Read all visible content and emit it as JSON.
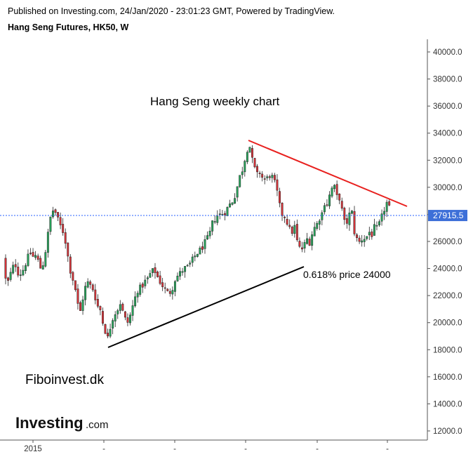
{
  "header": {
    "published": "Published on Investing.com, 24/Jan/2020 - 23:01:23 GMT, Powered by TradingView.",
    "instrument": "Hang Seng Futures, HK50, W"
  },
  "annotations": {
    "title": "Hang Seng weekly chart",
    "fib_note": "0.618% price 24000",
    "brand": "Fiboinvest.dk"
  },
  "logo": {
    "main": "Investing",
    "suffix": ".com"
  },
  "colors": {
    "up": "#26a65b",
    "down": "#d9343a",
    "resistance": "#e8201e",
    "support": "#000000",
    "price_line": "#2962ff",
    "price_tag": "#3d6fd8"
  },
  "chart_data": {
    "type": "candlestick",
    "timeframe": "W",
    "ylim": [
      11000,
      41500
    ],
    "y_ticks": [
      "40000.0",
      "38000.0",
      "36000.0",
      "34000.0",
      "32000.0",
      "30000.0",
      "28000.0",
      "26000.0",
      "24000.0",
      "22000.0",
      "20000.0",
      "18000.0",
      "16000.0",
      "14000.0",
      "12000.0"
    ],
    "x_ticks": [
      "2015",
      "-",
      "-",
      "-",
      "-",
      "-"
    ],
    "last_price": "27915.5",
    "last_price_value": 27915.5,
    "path": [
      [
        0,
        24800
      ],
      [
        3,
        25300
      ],
      [
        8,
        23200
      ],
      [
        12,
        23000
      ],
      [
        17,
        24000
      ],
      [
        22,
        24300
      ],
      [
        27,
        23500
      ],
      [
        32,
        23800
      ],
      [
        38,
        24600
      ],
      [
        43,
        25200
      ],
      [
        48,
        24800
      ],
      [
        52,
        25000
      ],
      [
        57,
        24000
      ],
      [
        62,
        24400
      ],
      [
        67,
        26000
      ],
      [
        71,
        27600
      ],
      [
        75,
        28300
      ],
      [
        80,
        28100
      ],
      [
        84,
        27300
      ],
      [
        88,
        27000
      ],
      [
        92,
        26400
      ],
      [
        96,
        25100
      ],
      [
        99,
        24200
      ],
      [
        102,
        23400
      ],
      [
        106,
        23000
      ],
      [
        110,
        21500
      ],
      [
        114,
        20700
      ],
      [
        118,
        21800
      ],
      [
        122,
        22700
      ],
      [
        126,
        23000
      ],
      [
        130,
        22600
      ],
      [
        134,
        22400
      ],
      [
        138,
        21200
      ],
      [
        142,
        21200
      ],
      [
        146,
        20100
      ],
      [
        150,
        19400
      ],
      [
        154,
        18800
      ],
      [
        158,
        19900
      ],
      [
        162,
        20600
      ],
      [
        167,
        20900
      ],
      [
        171,
        21500
      ],
      [
        176,
        20600
      ],
      [
        181,
        19900
      ],
      [
        186,
        20600
      ],
      [
        191,
        21600
      ],
      [
        196,
        22400
      ],
      [
        201,
        22600
      ],
      [
        206,
        23000
      ],
      [
        210,
        23200
      ],
      [
        215,
        23700
      ],
      [
        220,
        23900
      ],
      [
        226,
        23200
      ],
      [
        232,
        22700
      ],
      [
        238,
        22200
      ],
      [
        244,
        22300
      ],
      [
        250,
        23300
      ],
      [
        256,
        23600
      ],
      [
        262,
        24000
      ],
      [
        268,
        24100
      ],
      [
        274,
        24600
      ],
      [
        280,
        25100
      ],
      [
        286,
        25400
      ],
      [
        292,
        25900
      ],
      [
        298,
        26400
      ],
      [
        303,
        27400
      ],
      [
        309,
        27900
      ],
      [
        315,
        28000
      ],
      [
        321,
        28200
      ],
      [
        327,
        28700
      ],
      [
        333,
        29100
      ],
      [
        337,
        29800
      ],
      [
        341,
        30700
      ],
      [
        346,
        31400
      ],
      [
        351,
        32600
      ],
      [
        355,
        33300
      ],
      [
        358,
        32300
      ],
      [
        362,
        31500
      ],
      [
        366,
        30900
      ],
      [
        370,
        31100
      ],
      [
        375,
        30600
      ],
      [
        380,
        30600
      ],
      [
        384,
        30900
      ],
      [
        389,
        30700
      ],
      [
        394,
        29900
      ],
      [
        398,
        28700
      ],
      [
        402,
        28000
      ],
      [
        407,
        27800
      ],
      [
        411,
        27100
      ],
      [
        415,
        26600
      ],
      [
        420,
        27100
      ],
      [
        424,
        25800
      ],
      [
        428,
        25400
      ],
      [
        432,
        25500
      ],
      [
        437,
        26200
      ],
      [
        442,
        25900
      ],
      [
        446,
        26900
      ],
      [
        451,
        27200
      ],
      [
        455,
        27700
      ],
      [
        459,
        28100
      ],
      [
        463,
        29000
      ],
      [
        467,
        28700
      ],
      [
        471,
        29800
      ],
      [
        476,
        30100
      ],
      [
        480,
        29300
      ],
      [
        485,
        29200
      ],
      [
        489,
        27600
      ],
      [
        493,
        27200
      ],
      [
        497,
        27900
      ],
      [
        501,
        28300
      ],
      [
        505,
        26700
      ],
      [
        509,
        26100
      ],
      [
        513,
        25900
      ],
      [
        517,
        26300
      ],
      [
        521,
        26200
      ],
      [
        526,
        26700
      ],
      [
        530,
        26500
      ],
      [
        534,
        27100
      ],
      [
        538,
        26900
      ],
      [
        542,
        27500
      ],
      [
        546,
        28100
      ],
      [
        550,
        28800
      ],
      [
        553,
        28900
      ],
      [
        557,
        27900
      ]
    ]
  }
}
